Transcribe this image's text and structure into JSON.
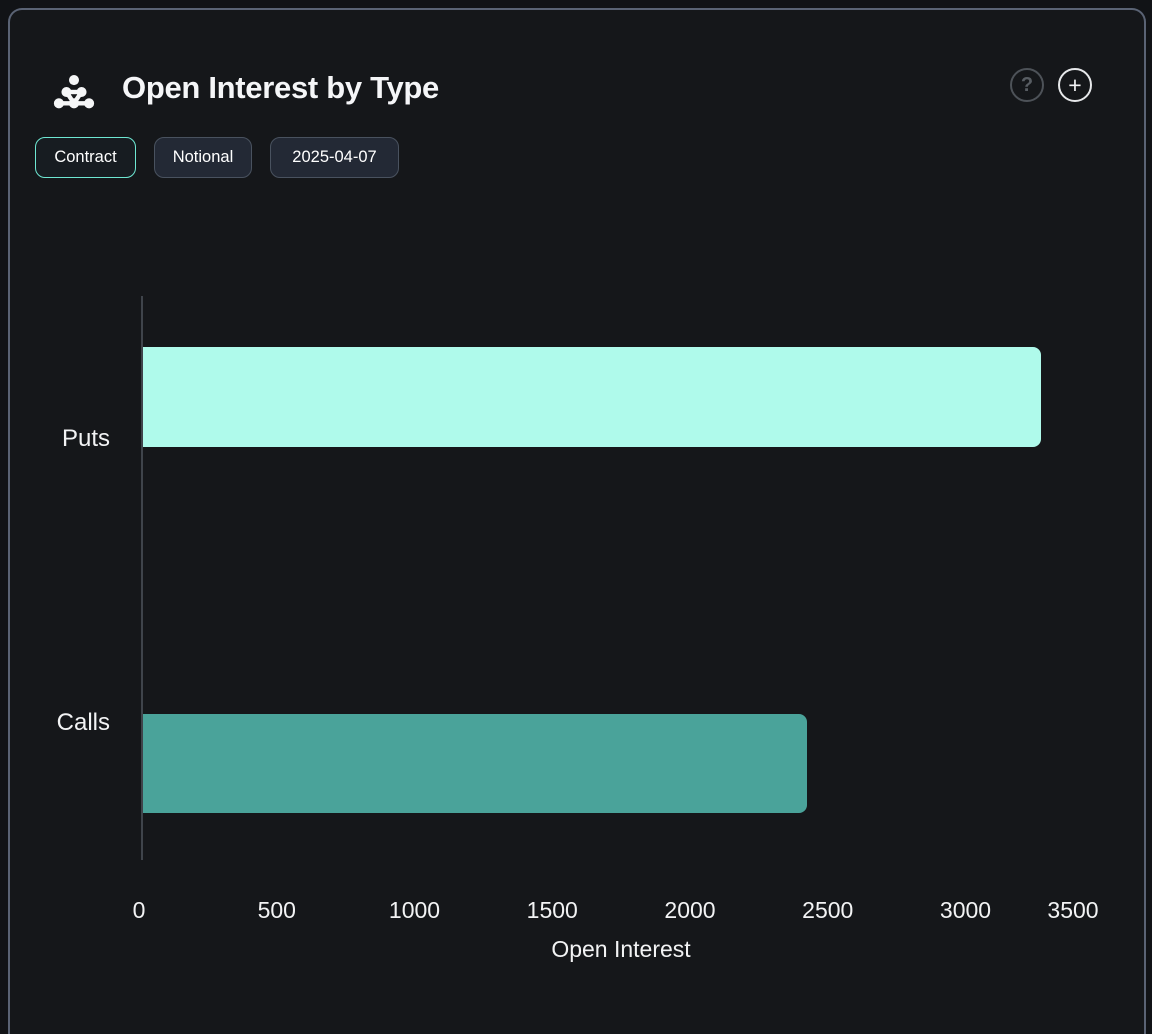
{
  "header": {
    "title": "Open Interest by Type",
    "logo": "dots-triangle-logo",
    "help_glyph": "?",
    "add_glyph": "+"
  },
  "toolbar": {
    "buttons": [
      {
        "label": "Contract",
        "active": true
      },
      {
        "label": "Notional",
        "active": false
      },
      {
        "label": "2025-04-07",
        "active": false
      }
    ]
  },
  "chart_data": {
    "type": "bar",
    "orientation": "horizontal",
    "title": "Open Interest by Type",
    "categories": [
      "Puts",
      "Calls"
    ],
    "values": [
      3260,
      2410
    ],
    "colors": [
      "#affaeb",
      "#4aa39a"
    ],
    "xlabel": "Open Interest",
    "ylabel": "",
    "x_ticks": [
      0,
      500,
      1000,
      1500,
      2000,
      2500,
      3000,
      3500
    ],
    "xlim": [
      0,
      3500
    ],
    "grid": false,
    "legend": "none",
    "background": "#15171a",
    "accent_border": "#6ee7d2"
  }
}
